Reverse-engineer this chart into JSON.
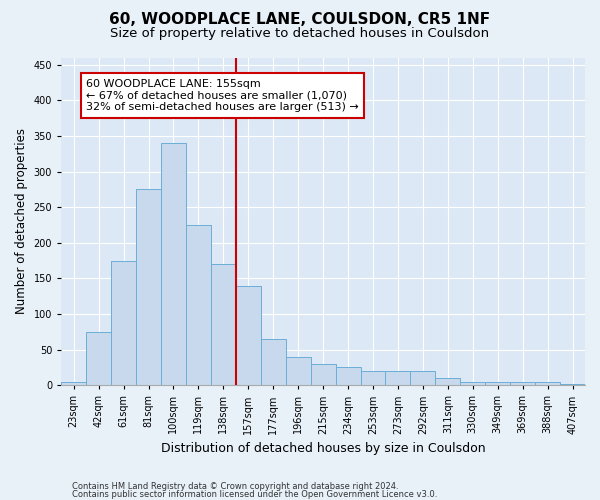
{
  "title": "60, WOODPLACE LANE, COULSDON, CR5 1NF",
  "subtitle": "Size of property relative to detached houses in Coulsdon",
  "xlabel": "Distribution of detached houses by size in Coulsdon",
  "ylabel": "Number of detached properties",
  "categories": [
    "23sqm",
    "42sqm",
    "61sqm",
    "81sqm",
    "100sqm",
    "119sqm",
    "138sqm",
    "157sqm",
    "177sqm",
    "196sqm",
    "215sqm",
    "234sqm",
    "253sqm",
    "273sqm",
    "292sqm",
    "311sqm",
    "330sqm",
    "349sqm",
    "369sqm",
    "388sqm",
    "407sqm"
  ],
  "values": [
    5,
    75,
    175,
    275,
    340,
    225,
    170,
    140,
    65,
    40,
    30,
    25,
    20,
    20,
    20,
    10,
    5,
    5,
    5,
    5,
    2
  ],
  "bar_color": "#c8d9ee",
  "bar_edge_color": "#6aaed6",
  "vline_color": "#cc0000",
  "annotation_line1": "60 WOODPLACE LANE: 155sqm",
  "annotation_line2": "← 67% of detached houses are smaller (1,070)",
  "annotation_line3": "32% of semi-detached houses are larger (513) →",
  "annotation_box_color": "#ffffff",
  "annotation_box_edge": "#cc0000",
  "ylim": [
    0,
    460
  ],
  "yticks": [
    0,
    50,
    100,
    150,
    200,
    250,
    300,
    350,
    400,
    450
  ],
  "footer_line1": "Contains HM Land Registry data © Crown copyright and database right 2024.",
  "footer_line2": "Contains public sector information licensed under the Open Government Licence v3.0.",
  "bg_color": "#e8f0f8",
  "plot_bg_color": "#dce8f5",
  "grid_color": "#ffffff",
  "title_fontsize": 11,
  "subtitle_fontsize": 9.5,
  "tick_fontsize": 7,
  "ylabel_fontsize": 8.5,
  "xlabel_fontsize": 9,
  "annotation_fontsize": 8,
  "footer_fontsize": 6
}
